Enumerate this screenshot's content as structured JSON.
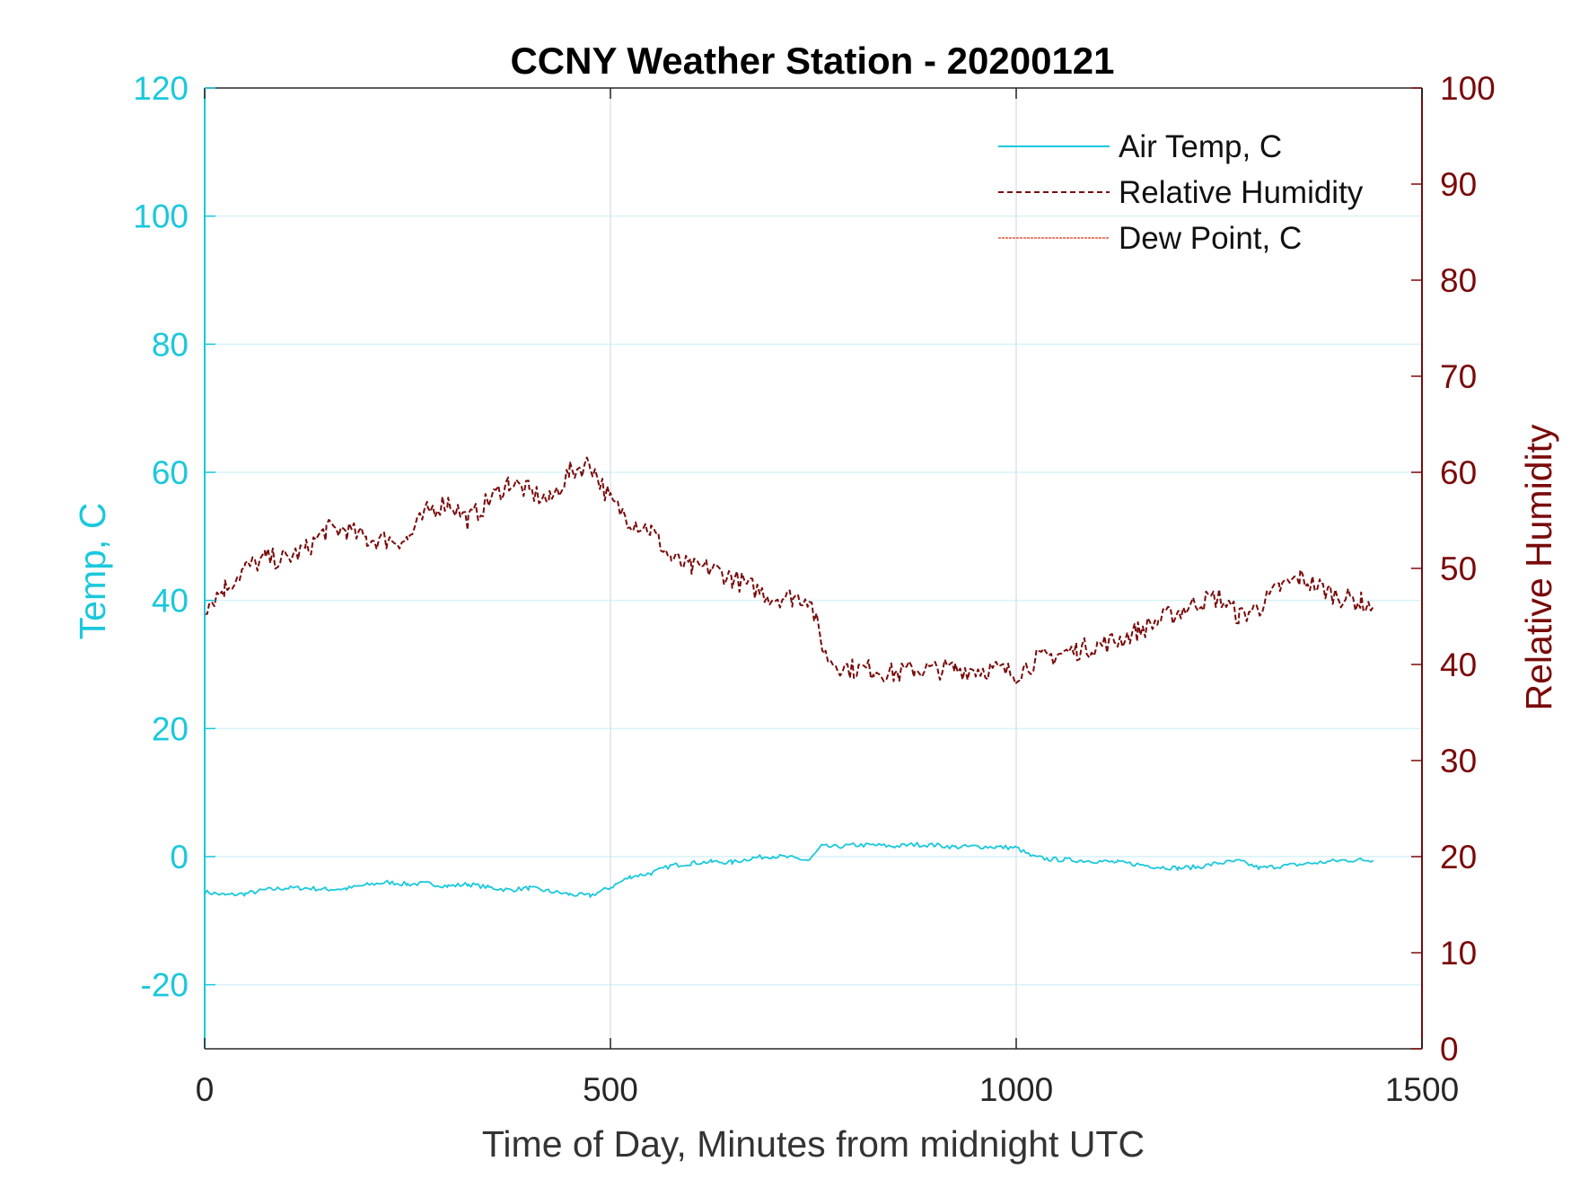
{
  "chart_data": {
    "type": "line",
    "title": "CCNY Weather Station - 20200121",
    "xlabel": "Time of Day, Minutes from midnight UTC",
    "ylabel_left": "Temp, C",
    "ylabel_right": "Relative Humidity",
    "xlim": [
      0,
      1500
    ],
    "ylim_left": [
      -30,
      120
    ],
    "ylim_right": [
      0,
      100
    ],
    "x_ticks": [
      "0",
      "500",
      "1000",
      "1500"
    ],
    "y_left_ticks": [
      "120",
      "100",
      "80",
      "60",
      "40",
      "20",
      "0",
      "-20"
    ],
    "y_right_ticks": [
      "100",
      "90",
      "80",
      "70",
      "60",
      "50",
      "40",
      "30",
      "20",
      "10",
      "0"
    ],
    "x_grid": [
      500,
      1000
    ],
    "y_grid_left": [
      100,
      80,
      60,
      40,
      20,
      0,
      -20
    ],
    "legend_position": "top-right",
    "colors": {
      "left_axis": "#1ac8dc",
      "right_axis": "#7a0a0a",
      "air_temp": "#1ac8dc",
      "humidity": "#7a0a0a",
      "dew_point": "#e8553a",
      "grid_x": "#dde2ea",
      "grid_y": "#d6f2f8"
    },
    "series": [
      {
        "name": "Air Temp, C",
        "axis": "left",
        "style": "solid",
        "x": [
          0,
          25,
          50,
          75,
          100,
          125,
          150,
          175,
          200,
          225,
          250,
          275,
          300,
          325,
          350,
          375,
          400,
          425,
          450,
          475,
          500,
          525,
          550,
          575,
          600,
          625,
          650,
          675,
          700,
          725,
          745,
          760,
          775,
          800,
          825,
          850,
          875,
          900,
          925,
          950,
          975,
          1000,
          1020,
          1040,
          1060,
          1080,
          1100,
          1125,
          1150,
          1175,
          1200,
          1225,
          1250,
          1275,
          1300,
          1325,
          1350,
          1375,
          1400,
          1425,
          1440
        ],
        "y": [
          -5.5,
          -6.0,
          -5.8,
          -5.2,
          -4.9,
          -4.9,
          -5.1,
          -5.0,
          -4.4,
          -4.0,
          -4.3,
          -4.2,
          -4.6,
          -4.3,
          -4.8,
          -5.2,
          -4.9,
          -5.4,
          -5.9,
          -6.1,
          -4.8,
          -3.1,
          -2.6,
          -1.4,
          -1.0,
          -0.8,
          -0.9,
          -0.2,
          0.1,
          -0.2,
          -0.6,
          1.6,
          1.5,
          1.8,
          1.8,
          1.6,
          1.9,
          1.8,
          1.5,
          1.6,
          1.5,
          1.4,
          0.0,
          -0.4,
          -0.5,
          -0.6,
          -0.7,
          -0.9,
          -1.2,
          -1.6,
          -1.8,
          -1.6,
          -1.0,
          -0.7,
          -1.8,
          -1.5,
          -1.2,
          -0.9,
          -0.6,
          -0.5,
          -0.6
        ]
      },
      {
        "name": "Relative Humidity",
        "axis": "right",
        "style": "dashed",
        "x": [
          0,
          25,
          50,
          75,
          100,
          125,
          150,
          175,
          200,
          225,
          250,
          275,
          300,
          325,
          350,
          375,
          400,
          425,
          450,
          475,
          500,
          525,
          550,
          575,
          600,
          625,
          650,
          675,
          700,
          725,
          745,
          755,
          765,
          780,
          800,
          825,
          850,
          875,
          900,
          925,
          950,
          975,
          1000,
          1025,
          1050,
          1075,
          1100,
          1125,
          1150,
          1175,
          1200,
          1225,
          1250,
          1275,
          1300,
          1325,
          1350,
          1375,
          1400,
          1425,
          1440
        ],
        "y": [
          46,
          48,
          50,
          51,
          51,
          52,
          54,
          54,
          53,
          53,
          53,
          56,
          57,
          55,
          57,
          59,
          58,
          57,
          60,
          61,
          57,
          55,
          54,
          51,
          50,
          50,
          49,
          48,
          47,
          47,
          47,
          44,
          41,
          40,
          39.5,
          39.5,
          39,
          39.5,
          39.5,
          39.5,
          39.5,
          39.5,
          39,
          40.5,
          41,
          41.5,
          42,
          42.5,
          43.5,
          44.5,
          45.5,
          46.5,
          47,
          45,
          46,
          48,
          49,
          48,
          47,
          46.5,
          46
        ]
      },
      {
        "name": "Dew Point, C",
        "axis": "left",
        "style": "dotted",
        "x": [],
        "y": []
      }
    ]
  }
}
